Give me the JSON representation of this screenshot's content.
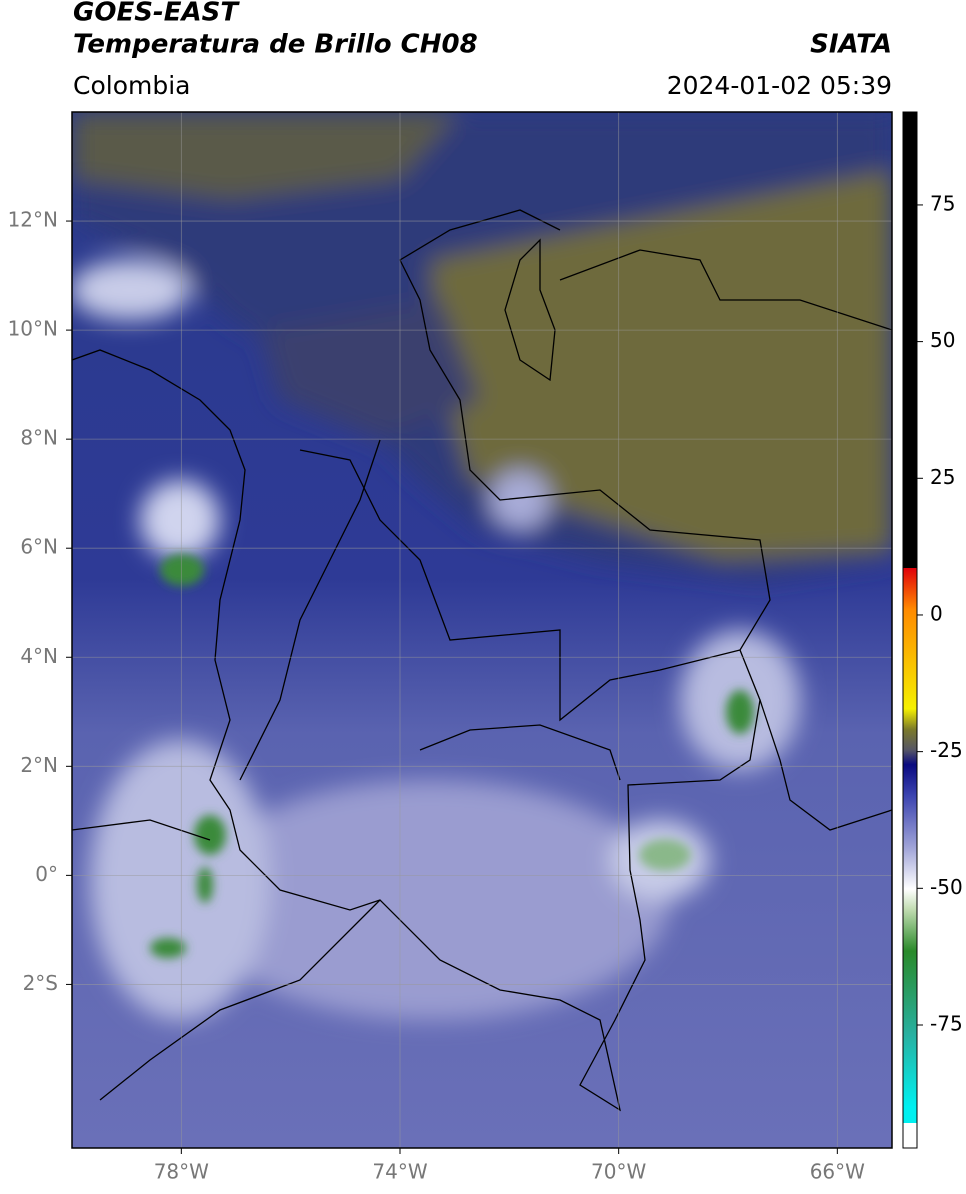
{
  "header": {
    "title": "GOES-EAST",
    "subtitle": "Temperatura de Brillo CH08",
    "source": "SIATA",
    "region": "Colombia",
    "datetime": "2024-01-02 05:39"
  },
  "map": {
    "xlim": [
      -80,
      -65
    ],
    "ylim": [
      -5,
      14
    ],
    "xticks": [
      {
        "value": -78,
        "label": "78°W"
      },
      {
        "value": -74,
        "label": "74°W"
      },
      {
        "value": -70,
        "label": "70°W"
      },
      {
        "value": -66,
        "label": "66°W"
      }
    ],
    "yticks": [
      {
        "value": 12,
        "label": "12°N"
      },
      {
        "value": 10,
        "label": "10°N"
      },
      {
        "value": 8,
        "label": "8°N"
      },
      {
        "value": 6,
        "label": "6°N"
      },
      {
        "value": 4,
        "label": "4°N"
      },
      {
        "value": 2,
        "label": "2°N"
      },
      {
        "value": 0,
        "label": "0°"
      },
      {
        "value": -2,
        "label": "2°S"
      }
    ],
    "grid": true
  },
  "colorbar": {
    "lim": [
      -97.5,
      92
    ],
    "ticks": [
      75,
      50,
      25,
      0,
      -25,
      -50,
      -75
    ]
  }
}
